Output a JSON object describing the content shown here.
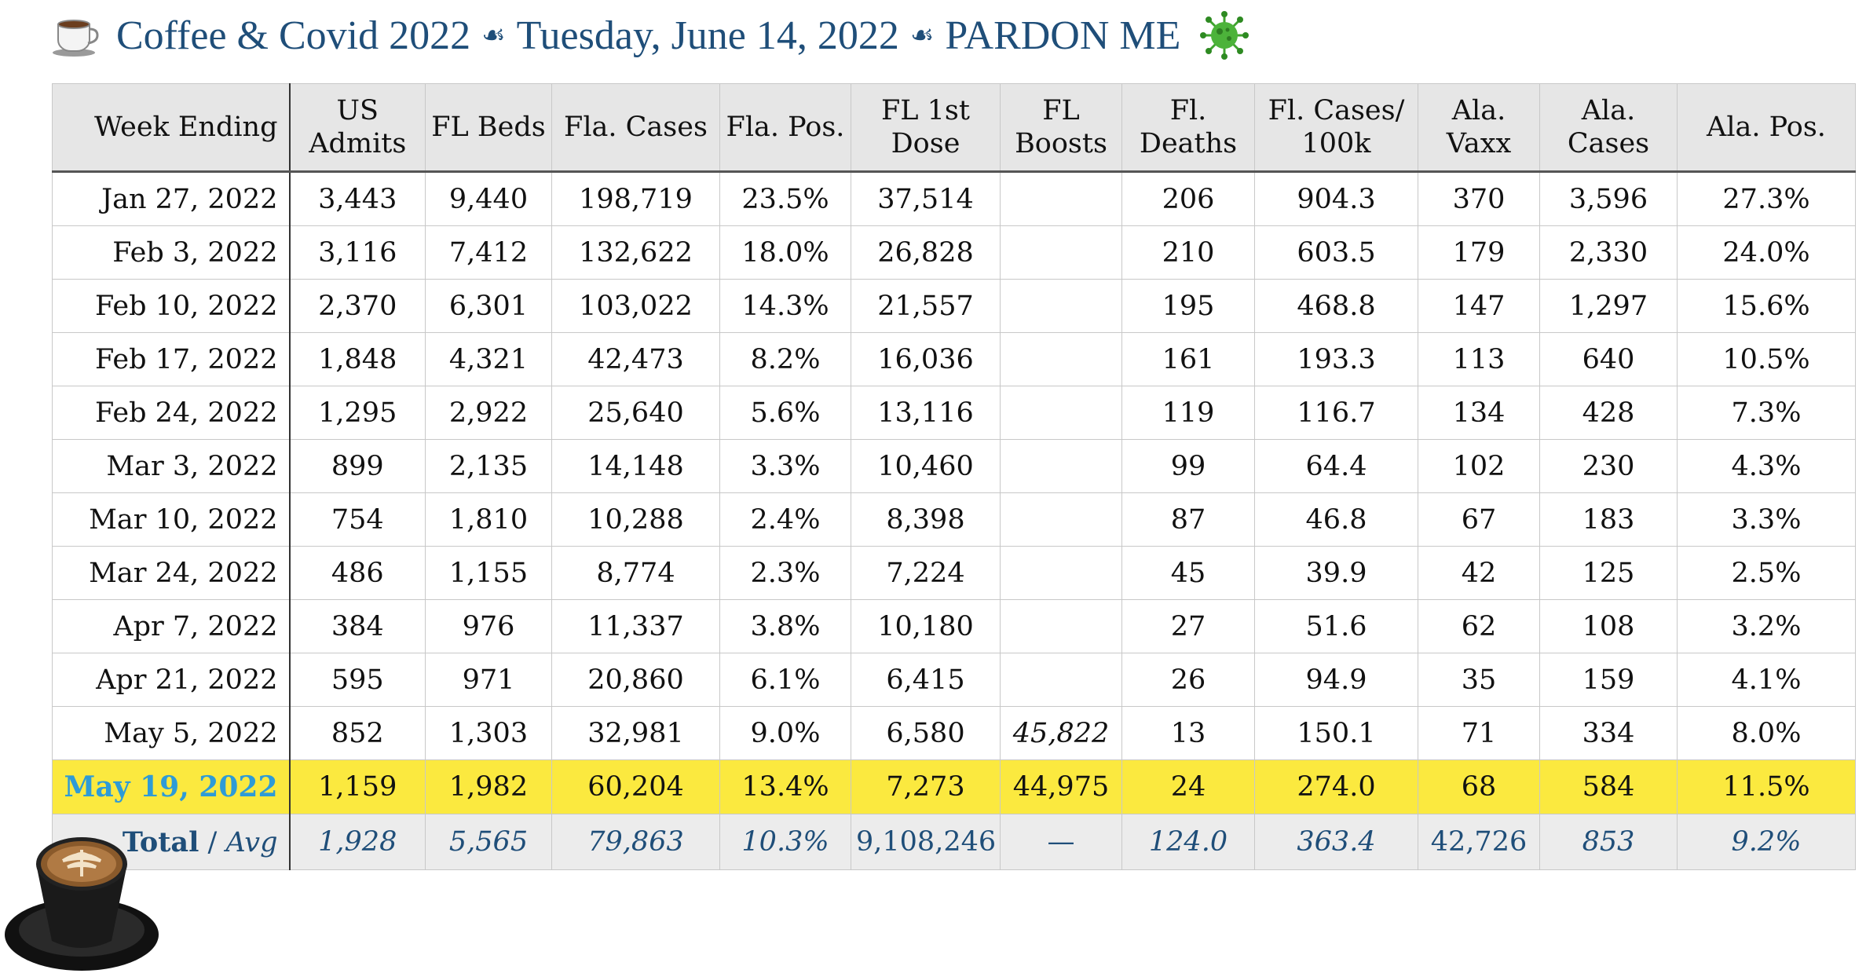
{
  "header": {
    "title_part1": "Coffee & Covid 2022",
    "separator": "☙",
    "title_date": "Tuesday, June 14, 2022",
    "title_part3": "PARDON ME"
  },
  "table": {
    "columns": [
      "Week Ending",
      "US Admits",
      "FL Beds",
      "Fla. Cases",
      "Fla. Pos.",
      "FL 1st Dose",
      "FL Boosts",
      "Fl. Deaths",
      "Fl. Cases/ 100k",
      "Ala. Vaxx",
      "Ala. Cases",
      "Ala. Pos."
    ],
    "rows": [
      [
        "Jan 27, 2022",
        "3,443",
        "9,440",
        "198,719",
        "23.5%",
        "37,514",
        "",
        "206",
        "904.3",
        "370",
        "3,596",
        "27.3%"
      ],
      [
        "Feb 3, 2022",
        "3,116",
        "7,412",
        "132,622",
        "18.0%",
        "26,828",
        "",
        "210",
        "603.5",
        "179",
        "2,330",
        "24.0%"
      ],
      [
        "Feb 10, 2022",
        "2,370",
        "6,301",
        "103,022",
        "14.3%",
        "21,557",
        "",
        "195",
        "468.8",
        "147",
        "1,297",
        "15.6%"
      ],
      [
        "Feb 17, 2022",
        "1,848",
        "4,321",
        "42,473",
        "8.2%",
        "16,036",
        "",
        "161",
        "193.3",
        "113",
        "640",
        "10.5%"
      ],
      [
        "Feb 24, 2022",
        "1,295",
        "2,922",
        "25,640",
        "5.6%",
        "13,116",
        "",
        "119",
        "116.7",
        "134",
        "428",
        "7.3%"
      ],
      [
        "Mar 3, 2022",
        "899",
        "2,135",
        "14,148",
        "3.3%",
        "10,460",
        "",
        "99",
        "64.4",
        "102",
        "230",
        "4.3%"
      ],
      [
        "Mar 10, 2022",
        "754",
        "1,810",
        "10,288",
        "2.4%",
        "8,398",
        "",
        "87",
        "46.8",
        "67",
        "183",
        "3.3%"
      ],
      [
        "Mar 24, 2022",
        "486",
        "1,155",
        "8,774",
        "2.3%",
        "7,224",
        "",
        "45",
        "39.9",
        "42",
        "125",
        "2.5%"
      ],
      [
        "Apr 7, 2022",
        "384",
        "976",
        "11,337",
        "3.8%",
        "10,180",
        "",
        "27",
        "51.6",
        "62",
        "108",
        "3.2%"
      ],
      [
        "Apr 21, 2022",
        "595",
        "971",
        "20,860",
        "6.1%",
        "6,415",
        "",
        "26",
        "94.9",
        "35",
        "159",
        "4.1%"
      ],
      [
        "May 5, 2022",
        "852",
        "1,303",
        "32,981",
        "9.0%",
        "6,580",
        "45,822",
        "13",
        "150.1",
        "71",
        "334",
        "8.0%"
      ]
    ],
    "highlight_row": [
      "May 19, 2022",
      "1,159",
      "1,982",
      "60,204",
      "13.4%",
      "7,273",
      "44,975",
      "24",
      "274.0",
      "68",
      "584",
      "11.5%"
    ],
    "total_row": {
      "label_total": "Total",
      "label_sep": "/",
      "label_avg": "Avg",
      "values": [
        "1,928",
        "5,565",
        "79,863",
        "10.3%",
        "9,108,246",
        "—",
        "124.0",
        "363.4",
        "42,726",
        "853",
        "9.2%"
      ]
    }
  },
  "colors": {
    "title": "#1f4e79",
    "header_bg": "#e6e6e6",
    "highlight_bg": "#fbe93f",
    "highlight_date": "#2e9bd6",
    "total_text": "#1f4e79",
    "virus": "#3fa32e"
  },
  "icons": [
    "coffee-cup-icon",
    "fleuron-icon",
    "virus-icon",
    "coffee-photo"
  ]
}
